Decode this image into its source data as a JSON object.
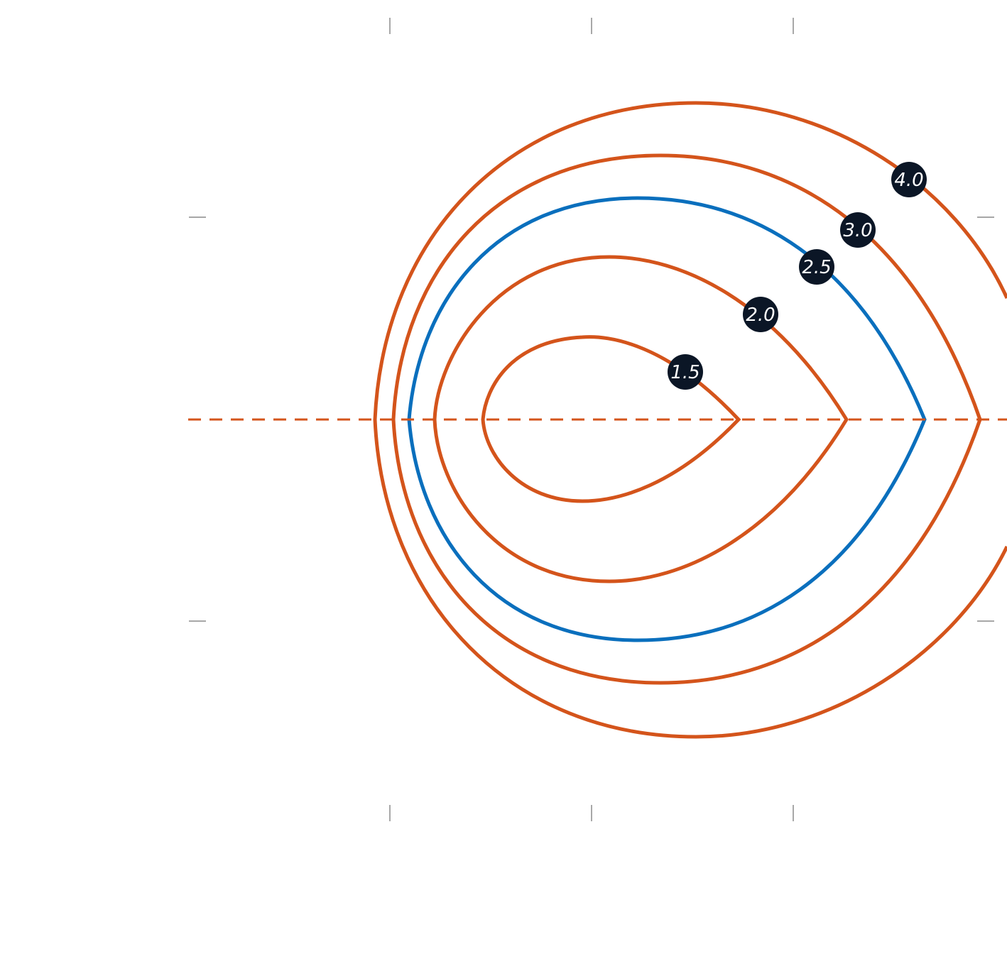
{
  "diagram": {
    "colors": {
      "background": "#ffffff",
      "contour": "#d4541b",
      "highlight_contour": "#0a6fbd",
      "label_badge": "#0b1626",
      "label_text": "#ffffff",
      "tick": "#8a8a8a"
    },
    "contours": [
      {
        "label": "1.5",
        "highlighted": false
      },
      {
        "label": "2.0",
        "highlighted": false
      },
      {
        "label": "2.5",
        "highlighted": true
      },
      {
        "label": "3.0",
        "highlighted": false
      },
      {
        "label": "4.0",
        "highlighted": false
      }
    ],
    "symmetry_axis": {
      "style": "dashed"
    }
  }
}
